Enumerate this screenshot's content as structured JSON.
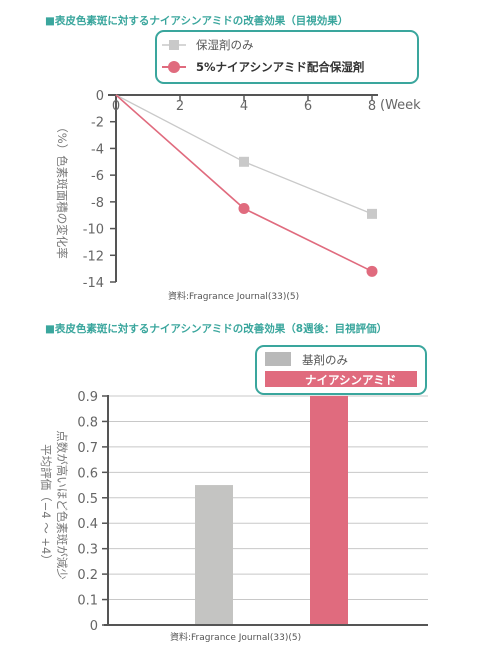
{
  "chart_data": [
    {
      "type": "line",
      "title": "■表皮色素斑に対するナイアシンアミドの改善効果（目視効果）",
      "ylabel": "（%）色素斑面積の変化率",
      "x_unit": "(Week",
      "x_ticks": [
        "0",
        "2",
        "4",
        "6",
        "8"
      ],
      "y_ticks": [
        "0",
        "-2",
        "-4",
        "-6",
        "-8",
        "-10",
        "-12",
        "-14"
      ],
      "xlim": [
        0,
        8
      ],
      "ylim": [
        -14,
        0
      ],
      "grid": false,
      "legend_position": "top-right",
      "series": [
        {
          "name": "保湿剤のみ",
          "color": "#c9c9c9",
          "marker": "square",
          "x": [
            0,
            4,
            8
          ],
          "y": [
            0,
            -5.0,
            -8.9
          ]
        },
        {
          "name": "5%ナイアシンアミド配合保湿剤",
          "color": "#e06b7e",
          "marker": "circle",
          "x": [
            0,
            4,
            8
          ],
          "y": [
            0,
            -8.5,
            -13.2
          ]
        }
      ],
      "source": "資料:Fragrance Journal(33)(5)"
    },
    {
      "type": "bar",
      "title": "■表皮色素斑に対するナイアシンアミドの改善効果（8週後：目視評価）",
      "ylabel_line1": "平均評価（−4 〜 +4）",
      "ylabel_line2": "点数が高いほど色素斑が減少",
      "categories": [
        "基剤のみ",
        "ナイアシンアミド"
      ],
      "values": [
        0.55,
        0.9
      ],
      "colors": [
        "#c4c4c2",
        "#e06b7e"
      ],
      "y_ticks": [
        "0",
        "0.1",
        "0.2",
        "0.3",
        "0.4",
        "0.5",
        "0.6",
        "0.7",
        "0.8",
        "0.9"
      ],
      "ylim": [
        0,
        0.9
      ],
      "grid": true,
      "legend_position": "top-right",
      "series": [
        {
          "name": "基剤のみ",
          "color": "#b9b9b9"
        },
        {
          "name": "ナイアシンアミド",
          "color": "#e06b7e"
        }
      ],
      "source": "資料:Fragrance Journal(33)(5)"
    }
  ]
}
